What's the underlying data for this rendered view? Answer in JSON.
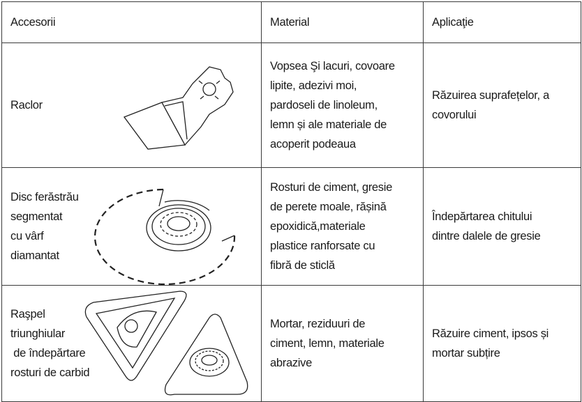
{
  "table": {
    "header": [
      "Accesorii",
      "Material",
      "Aplicaţie"
    ],
    "rows": [
      [
        [
          "Raclor"
        ],
        [
          "Vopsea Şi lacuri, covoare",
          "lipite, adezivi moi,",
          "pardoseli de linoleum,",
          "lemn și ale materiale de",
          "acoperit podeaua"
        ],
        [
          "Răzuirea suprafețelor, a",
          "covorului"
        ]
      ],
      [
        [
          "Disc ferăstrău",
          "segmentat",
          "cu vârf",
          "diamantat"
        ],
        [
          "Rosturi de ciment, gresie",
          "de perete moale, rășină",
          "epoxidică,materiale",
          "plastice ranforsate cu",
          "fibră de sticlă"
        ],
        [
          "Îndepărtarea chitului",
          "dintre dalele de gresie"
        ]
      ],
      [
        [
          "Raşpel",
          "triunghiular",
          " de îndepărtare",
          "rosturi de carbid"
        ],
        [
          "Mortar, reziduuri de",
          "ciment, lemn, materiale",
          "abrazive"
        ],
        [
          "Răzuire ciment, ipsos și",
          "mortar subțire"
        ]
      ]
    ]
  }
}
